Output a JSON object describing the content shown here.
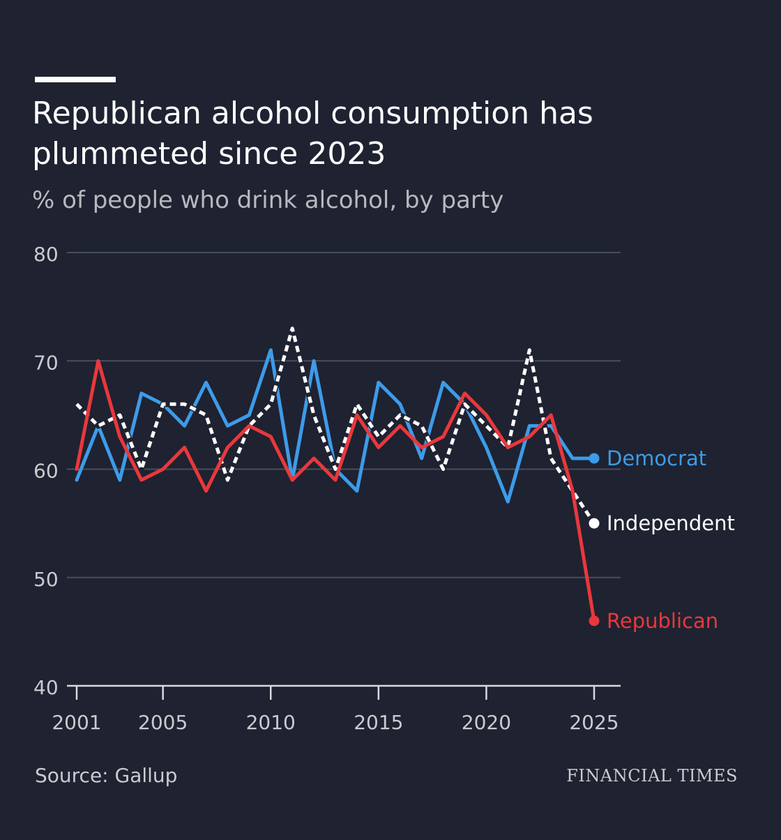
{
  "header": {
    "title_line1": "Republican alcohol consumption has",
    "title_line2": "plummeted since 2023",
    "subtitle": "% of people who drink alcohol, by party"
  },
  "footer": {
    "source": "Source: Gallup",
    "brand": "FINANCIAL TIMES"
  },
  "colors": {
    "background": "#1f2230",
    "grid": "#4a4e5c",
    "axis_text": "#c9cbd0",
    "democrat": "#3d9be9",
    "republican": "#e8383d",
    "independent": "#ffffff"
  },
  "chart_data": {
    "type": "line",
    "x": [
      2001,
      2002,
      2003,
      2004,
      2005,
      2006,
      2007,
      2008,
      2009,
      2010,
      2011,
      2012,
      2013,
      2014,
      2015,
      2016,
      2017,
      2018,
      2019,
      2020,
      2021,
      2022,
      2023,
      2024,
      2025
    ],
    "xticks": [
      2001,
      2005,
      2010,
      2015,
      2020,
      2025
    ],
    "yticks": [
      40,
      50,
      60,
      70,
      80
    ],
    "ylim": [
      40,
      80
    ],
    "xlim": [
      2001,
      2025
    ],
    "grid": true,
    "series": [
      {
        "name": "Democrat",
        "color": "#3d9be9",
        "style": "solid",
        "values": [
          59,
          64,
          59,
          67,
          66,
          64,
          68,
          64,
          65,
          71,
          59,
          70,
          60,
          58,
          68,
          66,
          61,
          68,
          66,
          62,
          57,
          64,
          64,
          61,
          61
        ]
      },
      {
        "name": "Independent",
        "color": "#ffffff",
        "style": "dashed",
        "values": [
          66,
          64,
          65,
          60,
          66,
          66,
          65,
          59,
          64,
          66,
          73,
          65,
          60,
          66,
          63,
          65,
          64,
          60,
          66,
          64,
          62,
          71,
          61,
          58,
          55
        ]
      },
      {
        "name": "Republican",
        "color": "#e8383d",
        "style": "solid",
        "values": [
          60,
          70,
          63,
          59,
          60,
          62,
          58,
          62,
          64,
          63,
          59,
          61,
          59,
          65,
          62,
          64,
          62,
          63,
          67,
          65,
          62,
          63,
          65,
          58,
          46
        ]
      }
    ]
  }
}
